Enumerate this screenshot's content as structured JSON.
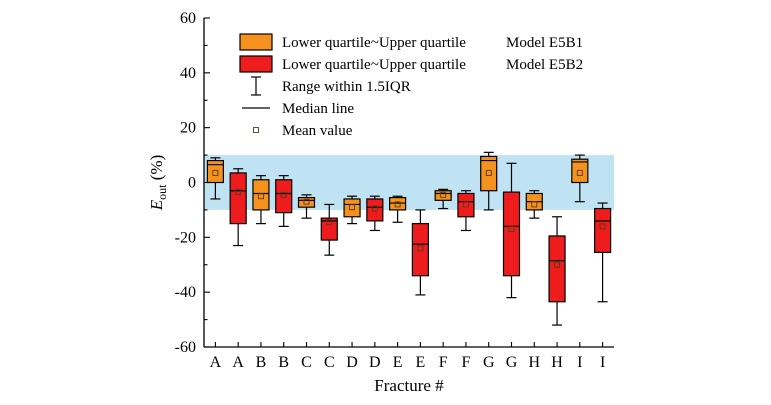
{
  "chart_data": {
    "type": "box",
    "xlabel": "Fracture #",
    "ylabel": {
      "base": "E",
      "sub": "out",
      "suffix": " (%)"
    },
    "ylim": [
      -60,
      60
    ],
    "yticks": [
      60,
      40,
      20,
      0,
      -20,
      -40,
      -60
    ],
    "band": {
      "from": -10,
      "to": 10,
      "color": "#bfe3f3"
    },
    "legend": {
      "placement": "top-right",
      "entries": [
        {
          "kind": "box",
          "label": "Lower quartile~Upper quartile",
          "model": "Model E5B1",
          "color": "#f5921e"
        },
        {
          "kind": "box",
          "label": "Lower quartile~Upper quartile",
          "model": "Model E5B2",
          "color": "#ee1c1c"
        },
        {
          "kind": "whisker",
          "label": "Range within 1.5IQR"
        },
        {
          "kind": "median",
          "label": "Median line"
        },
        {
          "kind": "mean",
          "label": "Mean value"
        }
      ]
    },
    "categories": [
      "A",
      "A",
      "B",
      "B",
      "C",
      "C",
      "D",
      "D",
      "E",
      "E",
      "F",
      "F",
      "G",
      "G",
      "H",
      "H",
      "I",
      "I"
    ],
    "boxes": [
      {
        "category": "A",
        "model": "Model E5B1",
        "min": -6,
        "q1": 0,
        "median": 6.5,
        "q3": 8,
        "max": 9,
        "mean": 3.5
      },
      {
        "category": "A",
        "model": "Model E5B2",
        "min": -23,
        "q1": -15,
        "median": -3,
        "q3": 3.5,
        "max": 5,
        "mean": -3.5
      },
      {
        "category": "B",
        "model": "Model E5B1",
        "min": -15,
        "q1": -10,
        "median": -4,
        "q3": 1,
        "max": 2.5,
        "mean": -5
      },
      {
        "category": "B",
        "model": "Model E5B2",
        "min": -16,
        "q1": -11,
        "median": -4,
        "q3": 1,
        "max": 2.5,
        "mean": -4.5
      },
      {
        "category": "C",
        "model": "Model E5B1",
        "min": -13,
        "q1": -9,
        "median": -6.5,
        "q3": -5.5,
        "max": -4.5,
        "mean": -7
      },
      {
        "category": "C",
        "model": "Model E5B2",
        "min": -26.5,
        "q1": -21,
        "median": -14,
        "q3": -13,
        "max": -8,
        "mean": -14.5
      },
      {
        "category": "D",
        "model": "Model E5B1",
        "min": -15,
        "q1": -12.5,
        "median": -8,
        "q3": -6,
        "max": -5,
        "mean": -9
      },
      {
        "category": "D",
        "model": "Model E5B2",
        "min": -17.5,
        "q1": -14,
        "median": -9,
        "q3": -6,
        "max": -5,
        "mean": -9.5
      },
      {
        "category": "E",
        "model": "Model E5B1",
        "min": -14.5,
        "q1": -10,
        "median": -7.5,
        "q3": -5.5,
        "max": -5,
        "mean": -8
      },
      {
        "category": "E",
        "model": "Model E5B2",
        "min": -41,
        "q1": -34,
        "median": -22.5,
        "q3": -15,
        "max": -10,
        "mean": -24
      },
      {
        "category": "F",
        "model": "Model E5B1",
        "min": -9.5,
        "q1": -6.5,
        "median": -4,
        "q3": -3,
        "max": -2.5,
        "mean": -4.5
      },
      {
        "category": "F",
        "model": "Model E5B2",
        "min": -17.5,
        "q1": -12.5,
        "median": -7,
        "q3": -4,
        "max": -3,
        "mean": -8
      },
      {
        "category": "G",
        "model": "Model E5B1",
        "min": -10,
        "q1": -3,
        "median": 8,
        "q3": 9.5,
        "max": 11,
        "mean": 3.5
      },
      {
        "category": "G",
        "model": "Model E5B2",
        "min": -42,
        "q1": -34,
        "median": -16,
        "q3": -3.5,
        "max": 7,
        "mean": -17
      },
      {
        "category": "H",
        "model": "Model E5B1",
        "min": -13,
        "q1": -10,
        "median": -7,
        "q3": -4,
        "max": -3,
        "mean": -8
      },
      {
        "category": "H",
        "model": "Model E5B2",
        "min": -52,
        "q1": -43.5,
        "median": -28.5,
        "q3": -19.5,
        "max": -12.5,
        "mean": -30
      },
      {
        "category": "I",
        "model": "Model E5B1",
        "min": -7,
        "q1": 0,
        "median": 7.5,
        "q3": 8.5,
        "max": 10,
        "mean": 3.5
      },
      {
        "category": "I",
        "model": "Model E5B2",
        "min": -43.5,
        "q1": -25.5,
        "median": -14,
        "q3": -9.5,
        "max": -7.5,
        "mean": -16
      }
    ]
  }
}
